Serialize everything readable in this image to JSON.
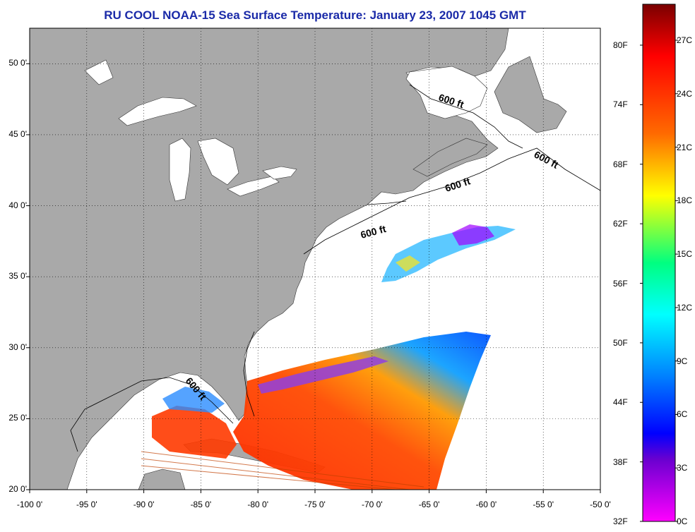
{
  "title": "RU COOL  NOAA-15  Sea Surface Temperature:  January 23, 2007 1045 GMT",
  "map": {
    "lon_range": [
      -100,
      -50
    ],
    "lat_range": [
      20,
      52.5
    ],
    "lon_ticks": [
      "-100 0'",
      "-95 0'",
      "-90 0'",
      "-85 0'",
      "-80 0'",
      "-75 0'",
      "-70 0'",
      "-65 0'",
      "-60 0'",
      "-55 0'",
      "-50 0'"
    ],
    "lat_ticks": [
      "20 0'",
      "25 0'",
      "30 0'",
      "35 0'",
      "40 0'",
      "45 0'",
      "50 0'"
    ],
    "grid": "dotted",
    "land_color": "#a9a9a9",
    "water_color": "#ffffff",
    "contour_label": "600 ft",
    "contour_labels": [
      {
        "text": "600 ft"
      },
      {
        "text": "600 ft"
      },
      {
        "text": "600 ft"
      },
      {
        "text": "600 ft"
      },
      {
        "text": "600 ft"
      }
    ]
  },
  "colorbar": {
    "f_labels": [
      "80F",
      "74F",
      "68F",
      "62F",
      "56F",
      "50F",
      "44F",
      "38F",
      "32F"
    ],
    "c_labels": [
      "27C",
      "24C",
      "21C",
      "18C",
      "15C",
      "12C",
      "9C",
      "6C",
      "3C",
      "0C"
    ],
    "colors_top_to_bottom": [
      "#8b0000",
      "#ff0000",
      "#ff8000",
      "#ffff00",
      "#00ff80",
      "#00ffff",
      "#0080ff",
      "#0000ff",
      "#ff00ff"
    ]
  }
}
